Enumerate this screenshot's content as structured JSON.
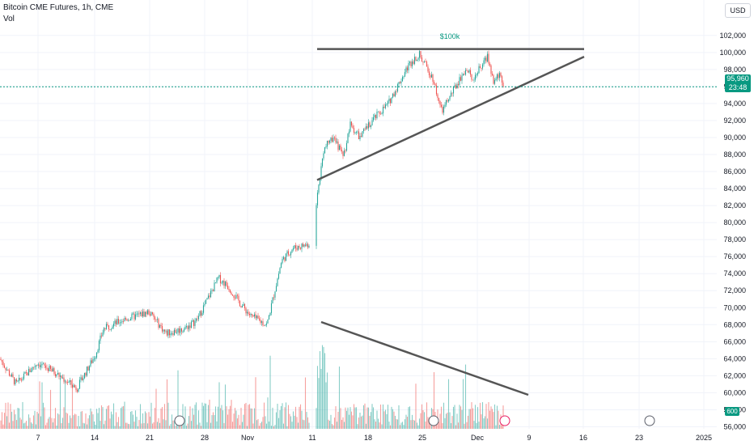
{
  "header": {
    "title": "Bitcoin CME Futures, 1h, CME",
    "volume_label": "Vol",
    "currency": "USD"
  },
  "last_price": {
    "value": "95,960",
    "countdown": "23:48"
  },
  "volume_badge": "600",
  "annotation": "$100k",
  "colors": {
    "up": "#26a69a",
    "down": "#ef5350",
    "line": "#555555",
    "grid": "#f0f3fa",
    "price_line": "#089981"
  },
  "chart_data": {
    "type": "candlestick",
    "y_axis": {
      "min": 56000,
      "max": 102000,
      "ticks": [
        56000,
        58000,
        60000,
        62000,
        64000,
        66000,
        68000,
        70000,
        72000,
        74000,
        76000,
        78000,
        80000,
        82000,
        84000,
        86000,
        88000,
        90000,
        92000,
        94000,
        96000,
        98000,
        100000,
        102000
      ]
    },
    "x_axis": {
      "ticks": [
        "7",
        "14",
        "21",
        "28",
        "Nov",
        "11",
        "18",
        "25",
        "Dec",
        "9",
        "16",
        "23",
        "2025"
      ]
    },
    "price_path": [
      [
        "start",
        64000
      ],
      [
        "Oct 5",
        61000
      ],
      [
        "Oct 7",
        63500
      ],
      [
        "Oct 9",
        62500
      ],
      [
        "Oct 11",
        60500
      ],
      [
        "Oct 14",
        64500
      ],
      [
        "Oct 15",
        67500
      ],
      [
        "Oct 17",
        68500
      ],
      [
        "Oct 21",
        69500
      ],
      [
        "Oct 23",
        67000
      ],
      [
        "Oct 25",
        67500
      ],
      [
        "Oct 27",
        68500
      ],
      [
        "Oct 29",
        73500
      ],
      [
        "Oct 30",
        72500
      ],
      [
        "Oct 31",
        70500
      ],
      [
        "Nov 2",
        69000
      ],
      [
        "Nov 4",
        68000
      ],
      [
        "Nov 6",
        75500
      ],
      [
        "Nov 8",
        77000
      ],
      [
        "Nov 10",
        77500
      ],
      [
        "Nov 11",
        83000
      ],
      [
        "Nov 12",
        88500
      ],
      [
        "Nov 13",
        90000
      ],
      [
        "Nov 14",
        88000
      ],
      [
        "Nov 15",
        91500
      ],
      [
        "Nov 16",
        90000
      ],
      [
        "Nov 18",
        92000
      ],
      [
        "Nov 20",
        94000
      ],
      [
        "Nov 22",
        98500
      ],
      [
        "Nov 23",
        99800
      ],
      [
        "Nov 25",
        97000
      ],
      [
        "Nov 26",
        93000
      ],
      [
        "Nov 27",
        95500
      ],
      [
        "Nov 29",
        98000
      ],
      [
        "Nov 30",
        97000
      ],
      [
        "Dec 2",
        99500
      ],
      [
        "Dec 3",
        96500
      ],
      [
        "Dec 4",
        97500
      ],
      [
        "Dec 5",
        95960
      ]
    ],
    "lines": [
      {
        "name": "resistance",
        "from": [
          "Nov 11",
          100400
        ],
        "to": [
          "Dec 16",
          100400
        ]
      },
      {
        "name": "rising-support",
        "from": [
          "Nov 11",
          85000
        ],
        "to": [
          "Dec 16",
          99500
        ]
      },
      {
        "name": "volume-trend",
        "from": [
          "Nov 11",
          "high volume"
        ],
        "to": [
          "Dec 9",
          "low volume"
        ]
      }
    ]
  }
}
